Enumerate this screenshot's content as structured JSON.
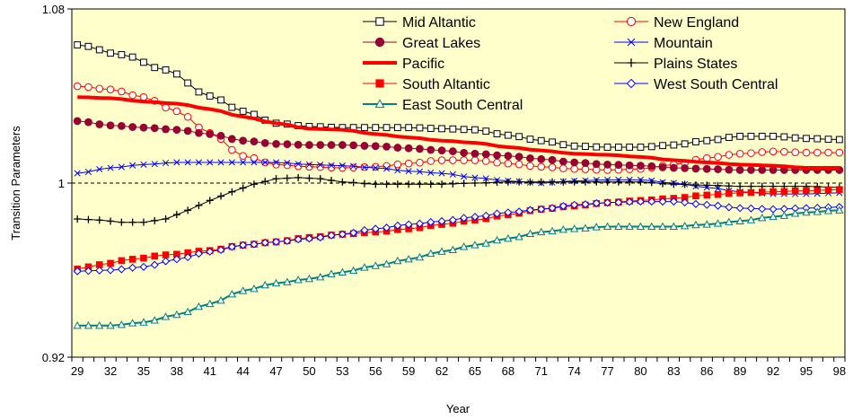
{
  "chart_data": {
    "type": "line",
    "title": "",
    "xlabel": "Year",
    "ylabel": "Transition Parameters",
    "ylim": [
      0.92,
      1.08
    ],
    "yticks": [
      "0.92",
      "1",
      "1.08"
    ],
    "reference_line": 1.0,
    "x": [
      29,
      30,
      31,
      32,
      33,
      34,
      35,
      36,
      37,
      38,
      39,
      40,
      41,
      42,
      43,
      44,
      45,
      46,
      47,
      48,
      49,
      50,
      51,
      52,
      53,
      54,
      55,
      56,
      57,
      58,
      59,
      60,
      61,
      62,
      63,
      64,
      65,
      66,
      67,
      68,
      69,
      70,
      71,
      72,
      73,
      74,
      75,
      76,
      77,
      78,
      79,
      80,
      81,
      82,
      83,
      84,
      85,
      86,
      87,
      88,
      89,
      90,
      91,
      92,
      93,
      94,
      95,
      96,
      97,
      98
    ],
    "xticks": [
      "29",
      "32",
      "35",
      "38",
      "41",
      "44",
      "47",
      "50",
      "53",
      "56",
      "59",
      "62",
      "65",
      "68",
      "71",
      "74",
      "77",
      "80",
      "83",
      "86",
      "89",
      "92",
      "95",
      "98"
    ],
    "grid": false,
    "legend_position": "top-right",
    "plot_background": "#ffffcc",
    "series": [
      {
        "name": "Mid Altantic",
        "color": "#000000",
        "marker": "square-open",
        "linewidth": 1,
        "points": [
          [
            29,
            1.0635
          ],
          [
            33,
            1.059
          ],
          [
            37,
            1.052
          ],
          [
            41,
            1.04
          ],
          [
            44,
            1.033
          ],
          [
            47,
            1.0275
          ],
          [
            50,
            1.026
          ],
          [
            53,
            1.0255
          ],
          [
            56,
            1.0255
          ],
          [
            59,
            1.0255
          ],
          [
            62,
            1.025
          ],
          [
            65,
            1.0245
          ],
          [
            68,
            1.022
          ],
          [
            71,
            1.0195
          ],
          [
            74,
            1.017
          ],
          [
            77,
            1.0165
          ],
          [
            80,
            1.0165
          ],
          [
            83,
            1.0175
          ],
          [
            86,
            1.0195
          ],
          [
            89,
            1.0215
          ],
          [
            92,
            1.0215
          ],
          [
            95,
            1.0205
          ],
          [
            98,
            1.02
          ]
        ]
      },
      {
        "name": "New England",
        "color": "#ff0000",
        "marker": "circle-open",
        "linewidth": 1,
        "points": [
          [
            29,
            1.0445
          ],
          [
            32,
            1.043
          ],
          [
            35,
            1.0395
          ],
          [
            38,
            1.033
          ],
          [
            41,
            1.023
          ],
          [
            44,
            1.0125
          ],
          [
            47,
            1.0085
          ],
          [
            50,
            1.0075
          ],
          [
            53,
            1.007
          ],
          [
            56,
            1.0075
          ],
          [
            59,
            1.009
          ],
          [
            62,
            1.0105
          ],
          [
            65,
            1.0105
          ],
          [
            68,
            1.009
          ],
          [
            71,
            1.0075
          ],
          [
            74,
            1.0065
          ],
          [
            77,
            1.006
          ],
          [
            80,
            1.0065
          ],
          [
            83,
            1.0085
          ],
          [
            86,
            1.0115
          ],
          [
            89,
            1.0135
          ],
          [
            92,
            1.0145
          ],
          [
            95,
            1.014
          ],
          [
            98,
            1.014
          ]
        ]
      },
      {
        "name": "Great Lakes",
        "color": "#990033",
        "marker": "circle-filled",
        "linewidth": 1,
        "points": [
          [
            29,
            1.0285
          ],
          [
            32,
            1.0265
          ],
          [
            35,
            1.0255
          ],
          [
            38,
            1.0245
          ],
          [
            41,
            1.0225
          ],
          [
            44,
            1.0195
          ],
          [
            47,
            1.018
          ],
          [
            50,
            1.0175
          ],
          [
            53,
            1.0175
          ],
          [
            56,
            1.017
          ],
          [
            59,
            1.016
          ],
          [
            62,
            1.015
          ],
          [
            65,
            1.0135
          ],
          [
            68,
            1.0125
          ],
          [
            71,
            1.011
          ],
          [
            74,
            1.0095
          ],
          [
            77,
            1.0085
          ],
          [
            80,
            1.008
          ],
          [
            83,
            1.007
          ],
          [
            86,
            1.0065
          ],
          [
            89,
            1.006
          ],
          [
            92,
            1.006
          ],
          [
            95,
            1.006
          ],
          [
            98,
            1.006
          ]
        ]
      },
      {
        "name": "Mountain",
        "color": "#0000ff",
        "marker": "x",
        "linewidth": 1,
        "points": [
          [
            29,
            1.0045
          ],
          [
            32,
            1.007
          ],
          [
            35,
            1.0085
          ],
          [
            38,
            1.0095
          ],
          [
            41,
            1.0095
          ],
          [
            44,
            1.0095
          ],
          [
            47,
            1.0095
          ],
          [
            50,
            1.0085
          ],
          [
            53,
            1.008
          ],
          [
            56,
            1.007
          ],
          [
            59,
            1.0055
          ],
          [
            62,
            1.0045
          ],
          [
            65,
            1.0025
          ],
          [
            68,
            1.001
          ],
          [
            71,
            1.0
          ],
          [
            74,
            1.001
          ],
          [
            77,
            1.0015
          ],
          [
            80,
            1.0015
          ],
          [
            83,
            1.0
          ],
          [
            86,
            0.998
          ],
          [
            89,
            0.996
          ],
          [
            92,
            0.995
          ],
          [
            95,
            0.995
          ],
          [
            98,
            0.9955
          ]
        ]
      },
      {
        "name": "Pacific",
        "color": "#ff0000",
        "marker": "none",
        "linewidth": 4,
        "points": [
          [
            29,
            1.0395
          ],
          [
            32,
            1.039
          ],
          [
            35,
            1.0375
          ],
          [
            38,
            1.0365
          ],
          [
            41,
            1.034
          ],
          [
            44,
            1.0305
          ],
          [
            47,
            1.0275
          ],
          [
            50,
            1.025
          ],
          [
            53,
            1.0245
          ],
          [
            56,
            1.0225
          ],
          [
            59,
            1.021
          ],
          [
            62,
            1.0195
          ],
          [
            65,
            1.0185
          ],
          [
            68,
            1.0165
          ],
          [
            71,
            1.015
          ],
          [
            74,
            1.0135
          ],
          [
            77,
            1.013
          ],
          [
            80,
            1.012
          ],
          [
            83,
            1.0105
          ],
          [
            86,
            1.0095
          ],
          [
            89,
            1.0085
          ],
          [
            92,
            1.008
          ],
          [
            95,
            1.007
          ],
          [
            98,
            1.007
          ]
        ]
      },
      {
        "name": "Plains States",
        "color": "#000000",
        "marker": "plus",
        "linewidth": 1,
        "points": [
          [
            29,
            0.9835
          ],
          [
            31,
            0.983
          ],
          [
            33,
            0.982
          ],
          [
            35,
            0.982
          ],
          [
            37,
            0.9835
          ],
          [
            39,
            0.9875
          ],
          [
            41,
            0.992
          ],
          [
            43,
            0.996
          ],
          [
            45,
            0.9995
          ],
          [
            47,
            1.002
          ],
          [
            49,
            1.0025
          ],
          [
            51,
            1.002
          ],
          [
            53,
            1.0005
          ],
          [
            56,
            0.9995
          ],
          [
            59,
            0.9995
          ],
          [
            62,
            0.9995
          ],
          [
            65,
            1.0
          ],
          [
            68,
            1.0005
          ],
          [
            71,
            1.0005
          ],
          [
            74,
            1.0005
          ],
          [
            77,
            1.0005
          ],
          [
            80,
            1.0005
          ],
          [
            83,
            0.9995
          ],
          [
            86,
            0.999
          ],
          [
            89,
            0.9985
          ],
          [
            92,
            0.9985
          ],
          [
            95,
            0.9985
          ],
          [
            98,
            0.998
          ]
        ]
      },
      {
        "name": "South Altantic",
        "color": "#ff0000",
        "marker": "square-filled",
        "linewidth": 1,
        "points": [
          [
            29,
            0.9605
          ],
          [
            31,
            0.9625
          ],
          [
            34,
            0.965
          ],
          [
            37,
            0.967
          ],
          [
            41,
            0.969
          ],
          [
            44,
            0.9715
          ],
          [
            47,
            0.973
          ],
          [
            50,
            0.975
          ],
          [
            53,
            0.9765
          ],
          [
            56,
            0.9775
          ],
          [
            59,
            0.979
          ],
          [
            62,
            0.981
          ],
          [
            65,
            0.983
          ],
          [
            68,
            0.9855
          ],
          [
            71,
            0.988
          ],
          [
            74,
            0.9895
          ],
          [
            77,
            0.991
          ],
          [
            80,
            0.992
          ],
          [
            83,
            0.993
          ],
          [
            86,
            0.9945
          ],
          [
            89,
            0.9955
          ],
          [
            92,
            0.996
          ],
          [
            95,
            0.9965
          ],
          [
            98,
            0.997
          ]
        ]
      },
      {
        "name": "West South Central",
        "color": "#0000ff",
        "marker": "diamond-open",
        "linewidth": 1,
        "points": [
          [
            29,
            0.9595
          ],
          [
            32,
            0.96
          ],
          [
            35,
            0.9615
          ],
          [
            38,
            0.965
          ],
          [
            41,
            0.9685
          ],
          [
            44,
            0.9715
          ],
          [
            47,
            0.973
          ],
          [
            50,
            0.9745
          ],
          [
            53,
            0.9765
          ],
          [
            56,
            0.979
          ],
          [
            59,
            0.981
          ],
          [
            62,
            0.9825
          ],
          [
            65,
            0.9845
          ],
          [
            68,
            0.9865
          ],
          [
            71,
            0.988
          ],
          [
            74,
            0.99
          ],
          [
            77,
            0.991
          ],
          [
            80,
            0.9915
          ],
          [
            83,
            0.9915
          ],
          [
            86,
            0.99
          ],
          [
            89,
            0.9885
          ],
          [
            92,
            0.988
          ],
          [
            95,
            0.9885
          ],
          [
            98,
            0.989
          ]
        ]
      },
      {
        "name": "East South Central",
        "color": "#008080",
        "marker": "triangle-open",
        "linewidth": 2,
        "points": [
          [
            29,
            0.9345
          ],
          [
            32,
            0.9345
          ],
          [
            35,
            0.936
          ],
          [
            38,
            0.9395
          ],
          [
            41,
            0.9445
          ],
          [
            44,
            0.9505
          ],
          [
            47,
            0.954
          ],
          [
            50,
            0.956
          ],
          [
            53,
            0.959
          ],
          [
            56,
            0.962
          ],
          [
            59,
            0.965
          ],
          [
            62,
            0.9685
          ],
          [
            65,
            0.9715
          ],
          [
            68,
            0.9745
          ],
          [
            71,
            0.9775
          ],
          [
            74,
            0.979
          ],
          [
            77,
            0.98
          ],
          [
            80,
            0.98
          ],
          [
            83,
            0.98
          ],
          [
            86,
            0.981
          ],
          [
            89,
            0.9825
          ],
          [
            92,
            0.9845
          ],
          [
            95,
            0.9865
          ],
          [
            98,
            0.9875
          ]
        ]
      }
    ]
  }
}
